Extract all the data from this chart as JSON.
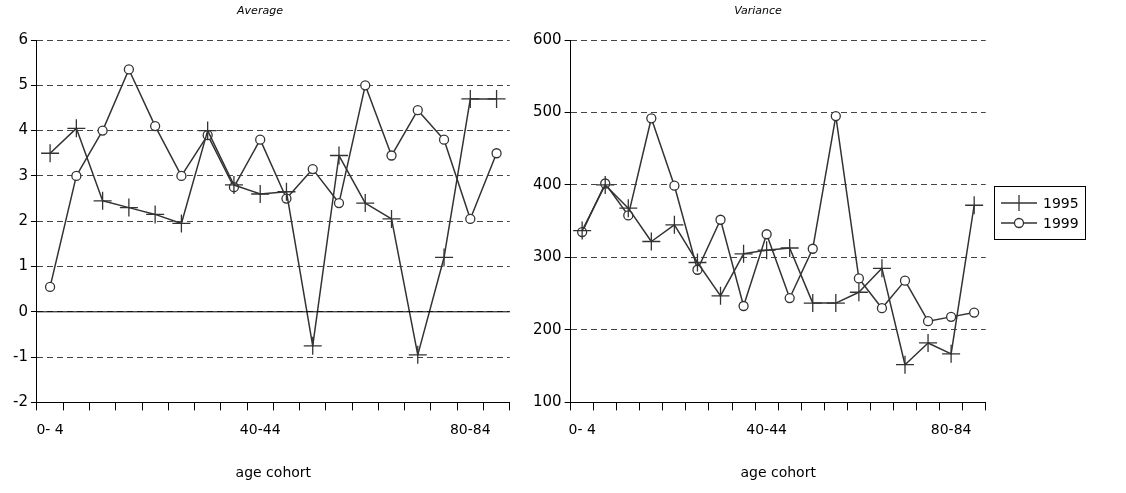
{
  "chart_data": [
    {
      "type": "line",
      "title": "Average",
      "xlabel": "age cohort",
      "categories": [
        "0- 4",
        null,
        null,
        null,
        null,
        null,
        null,
        null,
        "40-44",
        null,
        null,
        null,
        null,
        null,
        null,
        null,
        "80-84",
        null
      ],
      "ylim": [
        -2,
        6
      ],
      "yticks": [
        -2,
        -1,
        0,
        1,
        2,
        3,
        4,
        5,
        6
      ],
      "grid": "y",
      "legend": false,
      "series": [
        {
          "color": "#333333",
          "marker": "cross",
          "values": [
            3.5,
            4.05,
            2.45,
            2.3,
            2.15,
            1.95,
            4.0,
            2.8,
            2.6,
            2.65,
            -0.75,
            3.45,
            2.4,
            2.05,
            -0.95,
            1.2,
            4.7,
            4.7
          ]
        },
        {
          "color": "#333333",
          "marker": "circle",
          "values": [
            0.55,
            3.0,
            4.0,
            5.35,
            4.1,
            3.0,
            3.9,
            2.75,
            3.8,
            2.5,
            3.15,
            2.4,
            5.0,
            3.45,
            4.45,
            3.8,
            2.05,
            3.5
          ]
        }
      ]
    },
    {
      "type": "line",
      "title": "Variance",
      "xlabel": "age cohort",
      "categories": [
        "0- 4",
        null,
        null,
        null,
        null,
        null,
        null,
        null,
        "40-44",
        null,
        null,
        null,
        null,
        null,
        null,
        null,
        "80-84",
        null
      ],
      "ylim": [
        100,
        600
      ],
      "yticks": [
        100,
        200,
        300,
        400,
        500,
        600
      ],
      "grid": "y",
      "legend": "right",
      "series": [
        {
          "name": "1995",
          "color": "#333333",
          "marker": "cross",
          "values": [
            337,
            400,
            368,
            322,
            345,
            293,
            247,
            305,
            310,
            313,
            237,
            237,
            252,
            285,
            152,
            182,
            167,
            372
          ]
        },
        {
          "name": "1999",
          "color": "#333333",
          "marker": "circle",
          "values": [
            335,
            402,
            358,
            492,
            399,
            283,
            352,
            233,
            332,
            244,
            312,
            495,
            271,
            230,
            268,
            212,
            218,
            224
          ]
        }
      ]
    }
  ]
}
